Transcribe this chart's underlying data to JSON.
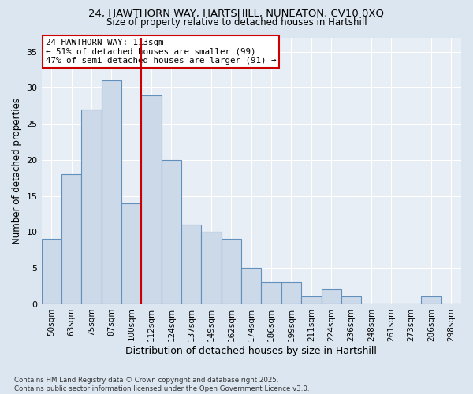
{
  "title_line1": "24, HAWTHORN WAY, HARTSHILL, NUNEATON, CV10 0XQ",
  "title_line2": "Size of property relative to detached houses in Hartshill",
  "xlabel": "Distribution of detached houses by size in Hartshill",
  "ylabel": "Number of detached properties",
  "categories": [
    "50sqm",
    "63sqm",
    "75sqm",
    "87sqm",
    "100sqm",
    "112sqm",
    "124sqm",
    "137sqm",
    "149sqm",
    "162sqm",
    "174sqm",
    "186sqm",
    "199sqm",
    "211sqm",
    "224sqm",
    "236sqm",
    "248sqm",
    "261sqm",
    "273sqm",
    "286sqm",
    "298sqm"
  ],
  "values": [
    9,
    18,
    27,
    31,
    14,
    29,
    20,
    11,
    10,
    9,
    5,
    3,
    3,
    1,
    2,
    1,
    0,
    0,
    0,
    1,
    0
  ],
  "bar_color": "#ccd9e8",
  "bar_edge_color": "#6090bb",
  "vline_index": 5,
  "vline_color": "#cc0000",
  "annotation_text": "24 HAWTHORN WAY: 113sqm\n← 51% of detached houses are smaller (99)\n47% of semi-detached houses are larger (91) →",
  "annotation_box_color": "#ffffff",
  "annotation_box_edge": "#cc0000",
  "ylim": [
    0,
    37
  ],
  "yticks": [
    0,
    5,
    10,
    15,
    20,
    25,
    30,
    35
  ],
  "footer_line1": "Contains HM Land Registry data © Crown copyright and database right 2025.",
  "footer_line2": "Contains public sector information licensed under the Open Government Licence v3.0.",
  "bg_color": "#dce6f0",
  "plot_bg_color": "#e8eef5",
  "grid_color": "#ffffff",
  "title_fontsize": 9.5,
  "subtitle_fontsize": 8.5
}
